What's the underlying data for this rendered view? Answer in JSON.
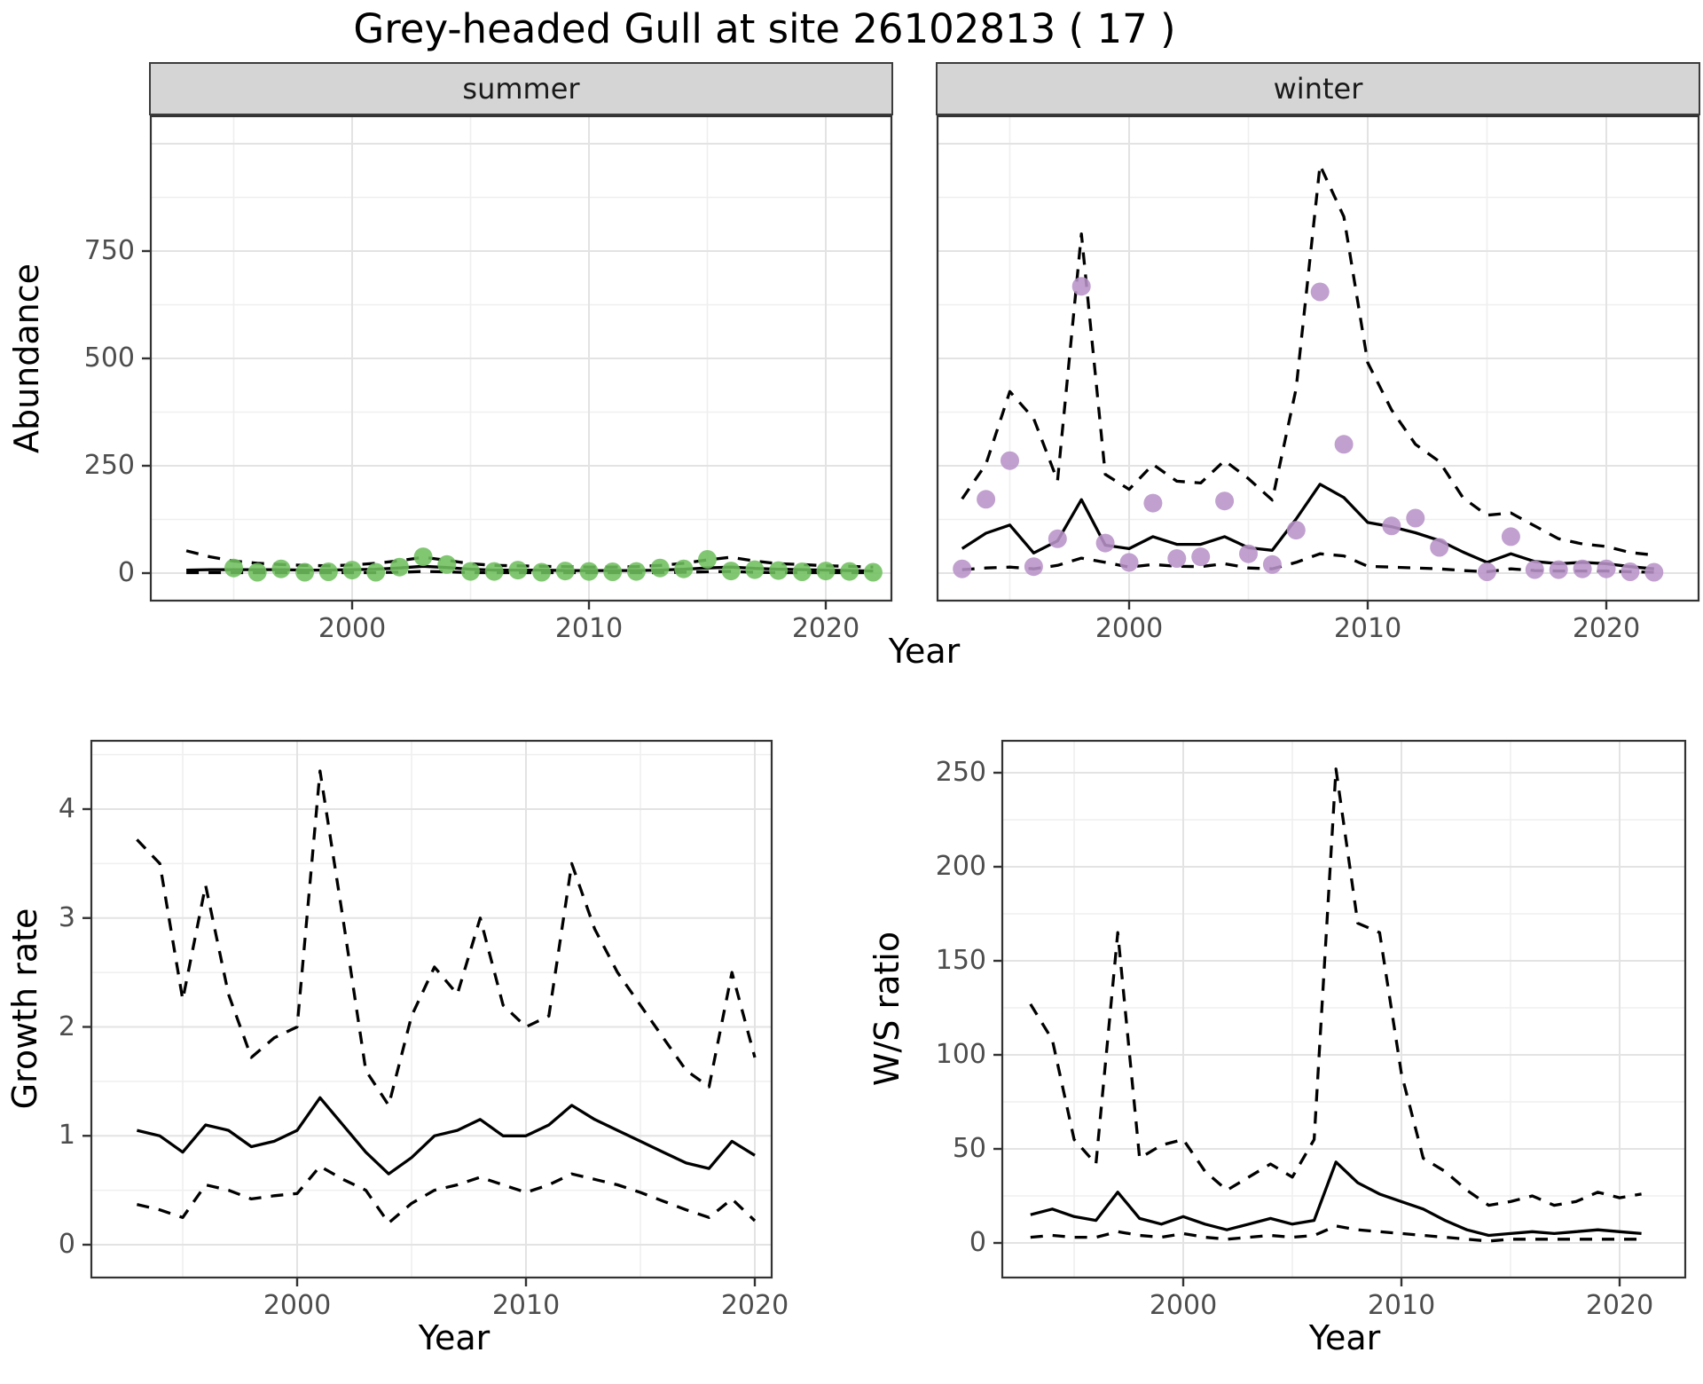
{
  "title": "Grey-headed Gull at site 26102813 ( 17 )",
  "shared_x_title": "Year",
  "colors": {
    "summer_point": "#6fbf5f",
    "winter_point": "#b893c8",
    "line": "#000000",
    "strip_bg": "#d5d5d5",
    "grid_major": "#e3e3e3",
    "grid_minor": "#efefef",
    "axis_text": "#4d4d4d",
    "panel_border": "#333333"
  },
  "chart_data": [
    {
      "id": "abundance-summer",
      "type": "line+scatter",
      "facet_label": "summer",
      "ylabel": "Abundance",
      "xlabel": "Year",
      "xticks": {
        "values": [
          2000,
          2010,
          2020
        ],
        "labels": [
          "2000",
          "2010",
          "2020"
        ]
      },
      "xminor": [
        1995,
        2005,
        2015
      ],
      "yticks": {
        "values": [
          0,
          250,
          500,
          750
        ],
        "labels": [
          "0",
          "250",
          "500",
          "750"
        ]
      },
      "yminor": [
        125,
        375,
        625,
        875
      ],
      "ygrid_extra": [
        1000
      ],
      "ylim": [
        0,
        1060
      ],
      "x": [
        1993,
        1994,
        1995,
        1996,
        1997,
        1998,
        1999,
        2000,
        2001,
        2002,
        2003,
        2004,
        2005,
        2006,
        2007,
        2008,
        2009,
        2010,
        2011,
        2012,
        2013,
        2014,
        2015,
        2016,
        2017,
        2018,
        2019,
        2020,
        2021,
        2022
      ],
      "series": [
        {
          "name": "model-fit",
          "style": "solid",
          "values": [
            7,
            8,
            8,
            8,
            8,
            7,
            7,
            8,
            9,
            12,
            16,
            13,
            9,
            7,
            7,
            7,
            6,
            6,
            6,
            6,
            7,
            9,
            12,
            14,
            11,
            9,
            8,
            7,
            6,
            5
          ]
        },
        {
          "name": "upper-ci",
          "style": "dashed",
          "values": [
            52,
            38,
            28,
            23,
            20,
            18,
            17,
            19,
            23,
            29,
            37,
            30,
            22,
            18,
            17,
            16,
            15,
            14,
            14,
            15,
            18,
            23,
            31,
            37,
            28,
            22,
            20,
            17,
            16,
            14
          ]
        },
        {
          "name": "lower-ci",
          "style": "dashed",
          "values": [
            1,
            1,
            1,
            1,
            1,
            1,
            1,
            1,
            1,
            2,
            4,
            3,
            1,
            1,
            1,
            1,
            1,
            1,
            1,
            1,
            1,
            2,
            3,
            4,
            2,
            1,
            1,
            1,
            1,
            1
          ]
        },
        {
          "name": "observed-counts",
          "style": "points",
          "color": "#6fbf5f",
          "x": [
            1995,
            1996,
            1997,
            1998,
            1999,
            2000,
            2001,
            2002,
            2003,
            2004,
            2005,
            2006,
            2007,
            2008,
            2009,
            2010,
            2011,
            2012,
            2013,
            2014,
            2015,
            2016,
            2017,
            2018,
            2019,
            2020,
            2021,
            2022
          ],
          "values": [
            12,
            2,
            10,
            2,
            3,
            7,
            2,
            14,
            38,
            20,
            4,
            4,
            7,
            2,
            5,
            4,
            3,
            4,
            12,
            10,
            32,
            5,
            8,
            6,
            3,
            5,
            4,
            2
          ]
        }
      ]
    },
    {
      "id": "abundance-winter",
      "type": "line+scatter",
      "facet_label": "winter",
      "ylabel": "Abundance",
      "xlabel": "Year",
      "xticks": {
        "values": [
          2000,
          2010,
          2020
        ],
        "labels": [
          "2000",
          "2010",
          "2020"
        ]
      },
      "xminor": [
        1995,
        2005,
        2015
      ],
      "yticks": {
        "values": [
          0,
          250,
          500,
          750
        ],
        "labels": [
          "0",
          "250",
          "500",
          "750"
        ]
      },
      "yminor": [
        125,
        375,
        625,
        875
      ],
      "ygrid_extra": [
        1000
      ],
      "ylim": [
        0,
        1060
      ],
      "x": [
        1993,
        1994,
        1995,
        1996,
        1997,
        1998,
        1999,
        2000,
        2001,
        2002,
        2003,
        2004,
        2005,
        2006,
        2007,
        2008,
        2009,
        2010,
        2011,
        2012,
        2013,
        2014,
        2015,
        2016,
        2017,
        2018,
        2019,
        2020,
        2021,
        2022
      ],
      "series": [
        {
          "name": "model-fit",
          "style": "solid",
          "values": [
            57,
            93,
            112,
            47,
            75,
            171,
            65,
            57,
            85,
            67,
            67,
            85,
            59,
            53,
            126,
            207,
            176,
            118,
            108,
            94,
            76,
            49,
            25,
            45,
            27,
            22,
            25,
            22,
            15,
            10
          ]
        },
        {
          "name": "upper-ci",
          "style": "dashed",
          "values": [
            173,
            254,
            423,
            360,
            215,
            790,
            230,
            195,
            253,
            214,
            210,
            262,
            220,
            170,
            430,
            950,
            830,
            490,
            380,
            300,
            260,
            175,
            135,
            140,
            110,
            80,
            68,
            62,
            48,
            42
          ]
        },
        {
          "name": "lower-ci",
          "style": "dashed",
          "values": [
            8,
            12,
            14,
            10,
            18,
            35,
            25,
            14,
            20,
            16,
            15,
            22,
            12,
            10,
            25,
            45,
            40,
            16,
            14,
            12,
            10,
            6,
            3,
            10,
            6,
            5,
            5,
            5,
            3,
            2
          ]
        },
        {
          "name": "observed-counts",
          "style": "points",
          "color": "#b893c8",
          "x": [
            1993,
            1994,
            1995,
            1996,
            1997,
            1998,
            1999,
            2000,
            2001,
            2002,
            2003,
            2004,
            2005,
            2006,
            2007,
            2008,
            2009,
            2011,
            2012,
            2013,
            2015,
            2016,
            2017,
            2018,
            2019,
            2020,
            2021,
            2022
          ],
          "values": [
            10,
            172,
            262,
            15,
            80,
            668,
            70,
            25,
            163,
            34,
            38,
            168,
            45,
            20,
            100,
            655,
            300,
            110,
            128,
            60,
            3,
            85,
            8,
            8,
            10,
            10,
            3,
            2
          ]
        }
      ]
    },
    {
      "id": "growth-rate",
      "type": "line",
      "ylabel": "Growth rate",
      "xlabel": "Year",
      "xticks": {
        "values": [
          2000,
          2010,
          2020
        ],
        "labels": [
          "2000",
          "2010",
          "2020"
        ]
      },
      "xminor": [
        1995,
        2005,
        2015
      ],
      "yticks": {
        "values": [
          0,
          1,
          2,
          3,
          4
        ],
        "labels": [
          "0",
          "1",
          "2",
          "3",
          "4"
        ]
      },
      "yminor": [
        0.5,
        1.5,
        2.5,
        3.5,
        4.5
      ],
      "ygrid_extra": [],
      "ylim": [
        0,
        4.6
      ],
      "x": [
        1993,
        1994,
        1995,
        1996,
        1997,
        1998,
        1999,
        2000,
        2001,
        2002,
        2003,
        2004,
        2005,
        2006,
        2007,
        2008,
        2009,
        2010,
        2011,
        2012,
        2013,
        2014,
        2015,
        2016,
        2017,
        2018,
        2019,
        2020
      ],
      "series": [
        {
          "name": "model-fit",
          "style": "solid",
          "values": [
            1.05,
            1.0,
            0.85,
            1.1,
            1.05,
            0.9,
            0.95,
            1.05,
            1.35,
            1.1,
            0.85,
            0.65,
            0.8,
            1.0,
            1.05,
            1.15,
            1.0,
            1.0,
            1.1,
            1.28,
            1.15,
            1.05,
            0.95,
            0.85,
            0.75,
            0.7,
            0.95,
            0.82
          ]
        },
        {
          "name": "upper-ci",
          "style": "dashed",
          "values": [
            3.72,
            3.5,
            2.25,
            3.3,
            2.3,
            1.72,
            1.9,
            2.0,
            4.35,
            3.0,
            1.6,
            1.28,
            2.1,
            2.55,
            2.3,
            3.0,
            2.2,
            2.0,
            2.1,
            3.5,
            2.9,
            2.5,
            2.2,
            1.9,
            1.6,
            1.45,
            2.5,
            1.72
          ]
        },
        {
          "name": "lower-ci",
          "style": "dashed",
          "values": [
            0.37,
            0.32,
            0.25,
            0.55,
            0.5,
            0.42,
            0.45,
            0.47,
            0.72,
            0.6,
            0.5,
            0.2,
            0.38,
            0.5,
            0.55,
            0.62,
            0.55,
            0.48,
            0.55,
            0.65,
            0.6,
            0.55,
            0.48,
            0.4,
            0.32,
            0.25,
            0.42,
            0.22
          ]
        }
      ]
    },
    {
      "id": "ws-ratio",
      "type": "line",
      "ylabel": "W/S ratio",
      "xlabel": "Year",
      "xticks": {
        "values": [
          2000,
          2010,
          2020
        ],
        "labels": [
          "2000",
          "2010",
          "2020"
        ]
      },
      "xminor": [
        1995,
        2005,
        2015
      ],
      "yticks": {
        "values": [
          0,
          50,
          100,
          150,
          200,
          250
        ],
        "labels": [
          "0",
          "50",
          "100",
          "150",
          "200",
          "250"
        ]
      },
      "yminor": [
        25,
        75,
        125,
        175,
        225
      ],
      "ygrid_extra": [],
      "ylim": [
        0,
        267
      ],
      "x": [
        1993,
        1994,
        1995,
        1996,
        1997,
        1998,
        1999,
        2000,
        2001,
        2002,
        2003,
        2004,
        2005,
        2006,
        2007,
        2008,
        2009,
        2010,
        2011,
        2012,
        2013,
        2014,
        2015,
        2016,
        2017,
        2018,
        2019,
        2020,
        2021
      ],
      "series": [
        {
          "name": "model-fit",
          "style": "solid",
          "values": [
            15,
            18,
            14,
            12,
            27,
            13,
            10,
            14,
            10,
            7,
            10,
            13,
            10,
            12,
            43,
            32,
            26,
            22,
            18,
            12,
            7,
            4,
            5,
            6,
            5,
            6,
            7,
            6,
            5
          ]
        },
        {
          "name": "upper-ci",
          "style": "dashed",
          "values": [
            127,
            108,
            55,
            42,
            165,
            45,
            52,
            55,
            38,
            28,
            35,
            42,
            35,
            55,
            252,
            170,
            165,
            90,
            45,
            38,
            28,
            20,
            22,
            25,
            20,
            22,
            27,
            24,
            26
          ]
        },
        {
          "name": "lower-ci",
          "style": "dashed",
          "values": [
            3,
            4,
            3,
            3,
            6,
            4,
            3,
            5,
            3,
            2,
            3,
            4,
            3,
            4,
            9,
            7,
            6,
            5,
            4,
            3,
            2,
            1,
            2,
            2,
            2,
            2,
            2,
            2,
            2
          ]
        }
      ]
    }
  ]
}
